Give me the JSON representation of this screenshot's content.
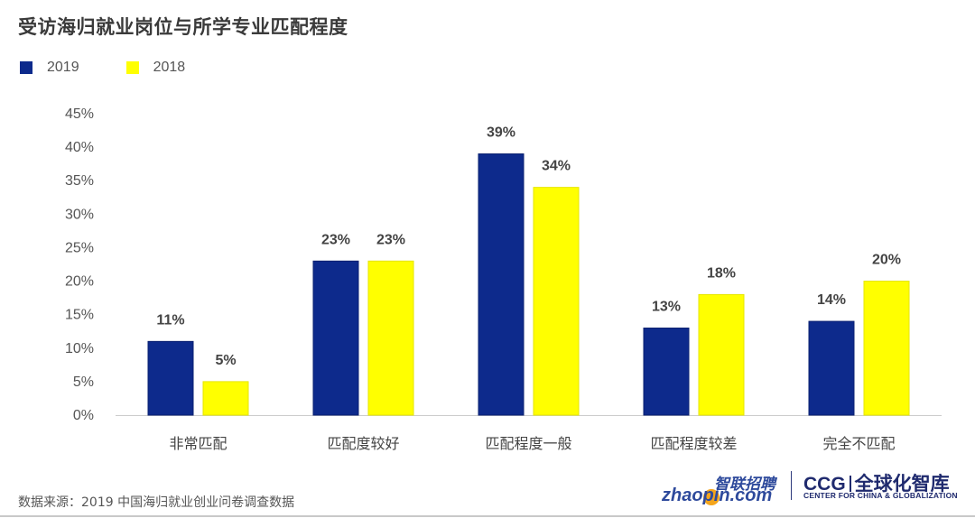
{
  "colors": {
    "series_2019": "#0d2a8c",
    "series_2018": "#ffff00",
    "axis": "#cccccc",
    "text": "#555555"
  },
  "chart_data": {
    "type": "bar",
    "title": "受访海归就业岗位与所学专业匹配程度",
    "categories": [
      "非常匹配",
      "匹配度较好",
      "匹配程度一般",
      "匹配程度较差",
      "完全不匹配"
    ],
    "series": [
      {
        "name": "2019",
        "values": [
          11,
          23,
          39,
          13,
          14
        ],
        "labels": [
          "11%",
          "23%",
          "39%",
          "13%",
          "14%"
        ]
      },
      {
        "name": "2018",
        "values": [
          5,
          23,
          34,
          18,
          20
        ],
        "labels": [
          "5%",
          "23%",
          "34%",
          "18%",
          "20%"
        ]
      }
    ],
    "y_ticks": [
      "0%",
      "5%",
      "10%",
      "15%",
      "20%",
      "25%",
      "30%",
      "35%",
      "40%",
      "45%"
    ],
    "ylim": [
      0,
      45
    ],
    "legend_position": "top-left",
    "grid": false
  },
  "source": "数据来源：2019 中国海归就业创业问卷调查数据",
  "logos": {
    "zhaopin_cn": "智联招聘",
    "zhaopin_en": "zhaopin.com",
    "ccg_en": "CCG",
    "ccg_cn": "全球化智库",
    "ccg_sub": "CENTER FOR CHINA & GLOBALIZATION"
  }
}
